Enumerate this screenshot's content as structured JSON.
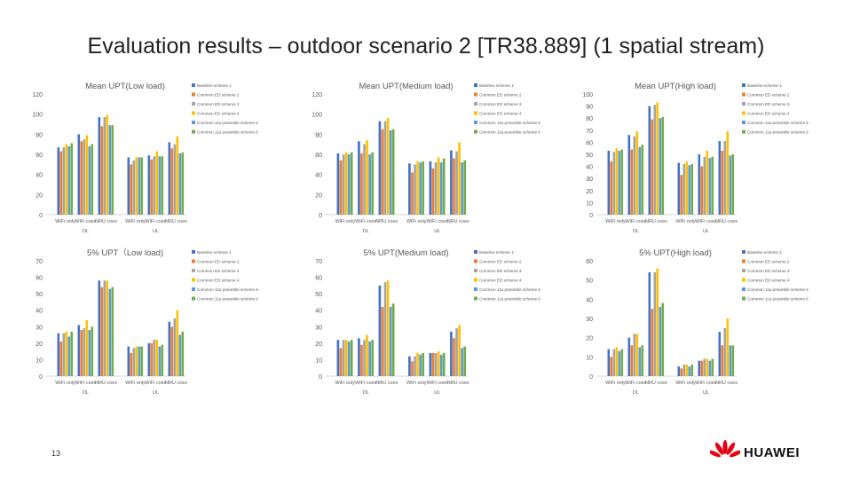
{
  "title": "Evaluation results – outdoor scenario 2 [TR38.889] (1 spatial stream)",
  "page_number": "13",
  "logo": {
    "text": "HUAWEI",
    "icon": "huawei-flower-logo"
  },
  "colors": [
    "#4472c4",
    "#ed7d31",
    "#a5a5a5",
    "#ffc000",
    "#5b9bd5",
    "#70ad47"
  ],
  "chart_data": [
    {
      "type": "bar",
      "title": "Mean UPT(Low load)",
      "categories": [
        "WiFi only",
        "WiFi coex",
        "NRU coex",
        "WiFi only",
        "WiFi coex",
        "NRU coex"
      ],
      "groups": [
        "DL",
        "UL"
      ],
      "ylim": [
        0,
        120
      ],
      "yticks": [
        0,
        20,
        40,
        60,
        80,
        100,
        120
      ],
      "series": [
        {
          "name": "Baseline scheme 1",
          "values": [
            67,
            80,
            97,
            57,
            59,
            72
          ]
        },
        {
          "name": "Common ED scheme 2",
          "values": [
            63,
            73,
            88,
            50,
            55,
            66
          ]
        },
        {
          "name": "Common ED scheme 3",
          "values": [
            67,
            75,
            97,
            54,
            58,
            70
          ]
        },
        {
          "name": "Common ED scheme 4",
          "values": [
            70,
            79,
            99,
            57,
            63,
            78
          ]
        },
        {
          "name": "Common 11a preamble scheme 5",
          "values": [
            68,
            68,
            89,
            57,
            58,
            61
          ]
        },
        {
          "name": "Common 11a preamble scheme 6",
          "values": [
            71,
            70,
            89,
            57,
            58,
            62
          ]
        }
      ]
    },
    {
      "type": "bar",
      "title": "Mean UPT(Medium load)",
      "categories": [
        "WiFi only",
        "WiFi coex",
        "NRU coex",
        "WiFi only",
        "WiFi coex",
        "NRU coex"
      ],
      "groups": [
        "DL",
        "UL"
      ],
      "ylim": [
        0,
        120
      ],
      "yticks": [
        0,
        20,
        40,
        60,
        80,
        100,
        120
      ],
      "series": [
        {
          "name": "Baseline scheme 1",
          "values": [
            61,
            73,
            93,
            51,
            53,
            64
          ]
        },
        {
          "name": "Common ED scheme 2",
          "values": [
            54,
            61,
            85,
            42,
            46,
            56
          ]
        },
        {
          "name": "Common ED scheme 3",
          "values": [
            60,
            70,
            93,
            50,
            52,
            63
          ]
        },
        {
          "name": "Common ED scheme 4",
          "values": [
            62,
            74,
            96,
            53,
            57,
            72
          ]
        },
        {
          "name": "Common 11a preamble scheme 5",
          "values": [
            60,
            60,
            84,
            52,
            52,
            52
          ]
        },
        {
          "name": "Common 11a preamble scheme 6",
          "values": [
            62,
            62,
            85,
            53,
            56,
            54
          ]
        }
      ]
    },
    {
      "type": "bar",
      "title": "Mean UPT(High load)",
      "categories": [
        "WiFi only",
        "WiFi coex",
        "NRU coex",
        "WiFi only",
        "WiFi coex",
        "NRU coex"
      ],
      "groups": [
        "DL",
        "UL"
      ],
      "ylim": [
        0,
        100
      ],
      "yticks": [
        0,
        10,
        20,
        30,
        40,
        50,
        60,
        70,
        80,
        90,
        100
      ],
      "series": [
        {
          "name": "Baseline scheme 1",
          "values": [
            53,
            66,
            90,
            43,
            50,
            61
          ]
        },
        {
          "name": "Common ED scheme 2",
          "values": [
            44,
            54,
            79,
            33,
            40,
            53
          ]
        },
        {
          "name": "Common ED scheme 3",
          "values": [
            52,
            65,
            91,
            42,
            48,
            61
          ]
        },
        {
          "name": "Common ED scheme 4",
          "values": [
            55,
            69,
            93,
            44,
            53,
            69
          ]
        },
        {
          "name": "Common 11a preamble scheme 5",
          "values": [
            53,
            56,
            80,
            41,
            47,
            49
          ]
        },
        {
          "name": "Common 11a preamble scheme 6",
          "values": [
            54,
            58,
            81,
            42,
            48,
            50
          ]
        }
      ]
    },
    {
      "type": "bar",
      "title": "5% UPT（Low load)",
      "categories": [
        "WiFi only",
        "WiFi coex",
        "NRU coex",
        "WiFi only",
        "WiFi coex",
        "NRU coex"
      ],
      "groups": [
        "DL",
        "UL"
      ],
      "ylim": [
        0,
        70
      ],
      "yticks": [
        0,
        10,
        20,
        30,
        40,
        50,
        60,
        70
      ],
      "series": [
        {
          "name": "Baseline scheme 1",
          "values": [
            26,
            31,
            58,
            18,
            20,
            33
          ]
        },
        {
          "name": "Common ED scheme 2",
          "values": [
            21,
            28,
            54,
            14,
            20,
            30
          ]
        },
        {
          "name": "Common ED scheme 3",
          "values": [
            26,
            29,
            58,
            17,
            22,
            35
          ]
        },
        {
          "name": "Common ED scheme 4",
          "values": [
            27,
            34,
            58,
            18,
            22,
            40
          ]
        },
        {
          "name": "Common 11a preamble scheme 5",
          "values": [
            24,
            28,
            53,
            18,
            18,
            25
          ]
        },
        {
          "name": "Common 11a preamble scheme 6",
          "values": [
            27,
            30,
            54,
            18,
            19,
            27
          ]
        }
      ]
    },
    {
      "type": "bar",
      "title": "5% UPT(Medium load)",
      "categories": [
        "WiFi only",
        "WiFi coex",
        "NRU coex",
        "WiFi only",
        "WiFi coex",
        "NRU coex"
      ],
      "groups": [
        "DL",
        "UL"
      ],
      "ylim": [
        0,
        70
      ],
      "yticks": [
        0,
        10,
        20,
        30,
        40,
        50,
        60,
        70
      ],
      "series": [
        {
          "name": "Baseline scheme 1",
          "values": [
            22,
            23,
            55,
            12,
            14,
            27
          ]
        },
        {
          "name": "Common ED scheme 2",
          "values": [
            17,
            19,
            42,
            9,
            14,
            23
          ]
        },
        {
          "name": "Common ED scheme 3",
          "values": [
            22,
            22,
            57,
            12,
            14,
            29
          ]
        },
        {
          "name": "Common ED scheme 4",
          "values": [
            22,
            25,
            58,
            14,
            15,
            31
          ]
        },
        {
          "name": "Common 11a preamble scheme 5",
          "values": [
            21,
            21,
            42,
            13,
            13,
            17
          ]
        },
        {
          "name": "Common 11a preamble scheme 6",
          "values": [
            22,
            22,
            44,
            14,
            14,
            18
          ]
        }
      ]
    },
    {
      "type": "bar",
      "title": "5% UPT(High load)",
      "categories": [
        "WiFi only",
        "WiFi coex",
        "NRU coex",
        "WiFi only",
        "WiFi coex",
        "NRU coex"
      ],
      "groups": [
        "DL",
        "UL"
      ],
      "ylim": [
        0,
        60
      ],
      "yticks": [
        0,
        10,
        20,
        30,
        40,
        50,
        60
      ],
      "series": [
        {
          "name": "Baseline scheme 1",
          "values": [
            14,
            20,
            54,
            5,
            8,
            23
          ]
        },
        {
          "name": "Common ED scheme 2",
          "values": [
            10,
            16,
            35,
            4,
            8,
            16
          ]
        },
        {
          "name": "Common ED scheme 3",
          "values": [
            14,
            22,
            54,
            6,
            9,
            25
          ]
        },
        {
          "name": "Common ED scheme 4",
          "values": [
            15,
            22,
            56,
            6,
            9,
            30
          ]
        },
        {
          "name": "Common 11a preamble scheme 5",
          "values": [
            13,
            15,
            36,
            5,
            8,
            16
          ]
        },
        {
          "name": "Common 11a preamble scheme 6",
          "values": [
            14,
            16,
            38,
            6,
            9,
            16
          ]
        }
      ]
    }
  ]
}
